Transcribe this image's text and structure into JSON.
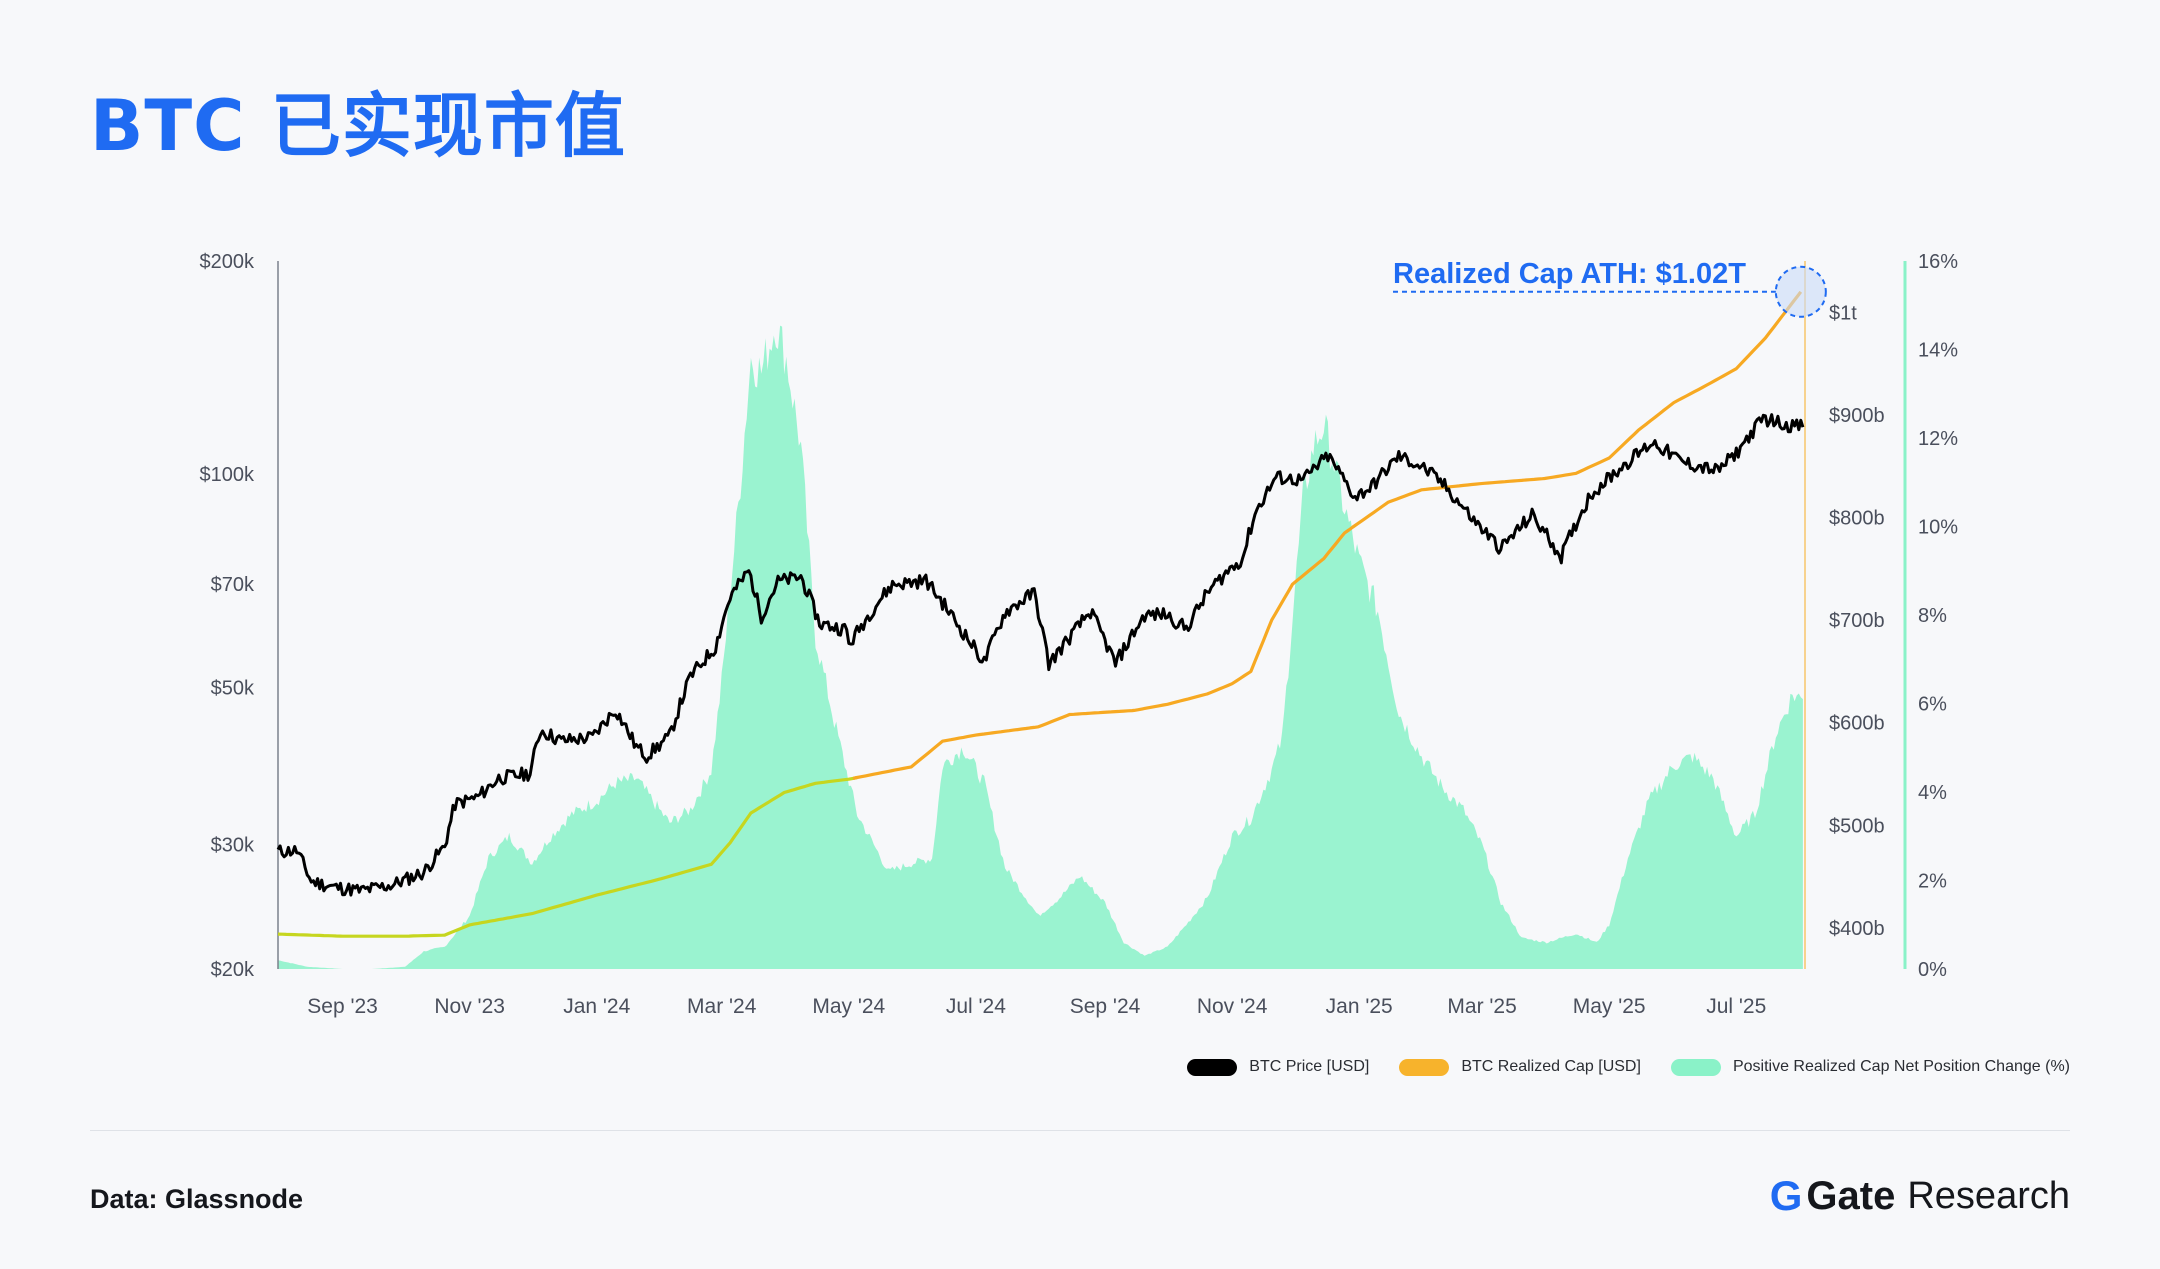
{
  "title": "BTC 已实现市值",
  "source": "Data: Glassnode",
  "brand": {
    "name": "Gate",
    "suffix": "Research"
  },
  "colors": {
    "price": "#000000",
    "realized_cap": "#f7a922",
    "realized_cap_early": "#c6d61f",
    "net_position": "#8af2c8",
    "accent": "#1f6bf2"
  },
  "legend": [
    {
      "label": "BTC Price [USD]",
      "color": "#000000"
    },
    {
      "label": "BTC Realized Cap [USD]",
      "color": "#f7b32c"
    },
    {
      "label": "Positive Realized Cap Net Position Change (%)",
      "color": "#8af2c8"
    }
  ],
  "chart_data": {
    "type": "line",
    "title": "BTC 已实现市值",
    "x_range": [
      "2023-08-01",
      "2025-08-03"
    ],
    "x_ticks": [
      {
        "date": "2023-09-01",
        "label": "Sep '23"
      },
      {
        "date": "2023-11-01",
        "label": "Nov '23"
      },
      {
        "date": "2024-01-01",
        "label": "Jan '24"
      },
      {
        "date": "2024-03-01",
        "label": "Mar '24"
      },
      {
        "date": "2024-05-01",
        "label": "May '24"
      },
      {
        "date": "2024-07-01",
        "label": "Jul '24"
      },
      {
        "date": "2024-09-01",
        "label": "Sep '24"
      },
      {
        "date": "2024-11-01",
        "label": "Nov '24"
      },
      {
        "date": "2025-01-01",
        "label": "Jan '25"
      },
      {
        "date": "2025-03-01",
        "label": "Mar '25"
      },
      {
        "date": "2025-05-01",
        "label": "May '25"
      },
      {
        "date": "2025-07-01",
        "label": "Jul '25"
      }
    ],
    "y_left": {
      "scale": "log",
      "unit": "USD",
      "range": [
        20000,
        200000
      ],
      "ticks": [
        {
          "value": 20000,
          "label": "$20k"
        },
        {
          "value": 30000,
          "label": "$30k"
        },
        {
          "value": 50000,
          "label": "$50k"
        },
        {
          "value": 70000,
          "label": "$70k"
        },
        {
          "value": 100000,
          "label": "$100k"
        },
        {
          "value": 200000,
          "label": "$200k"
        }
      ]
    },
    "y_right_cap": {
      "unit": "USD billions",
      "range": [
        360,
        1050
      ],
      "ticks": [
        {
          "value": 400,
          "label": "$400b"
        },
        {
          "value": 500,
          "label": "$500b"
        },
        {
          "value": 600,
          "label": "$600b"
        },
        {
          "value": 700,
          "label": "$700b"
        },
        {
          "value": 800,
          "label": "$800b"
        },
        {
          "value": 900,
          "label": "$900b"
        },
        {
          "value": 1000,
          "label": "$1t"
        }
      ]
    },
    "y_right_pct": {
      "unit": "%",
      "range": [
        0,
        16
      ],
      "ticks": [
        {
          "value": 0,
          "label": "0%"
        },
        {
          "value": 2,
          "label": "2%"
        },
        {
          "value": 4,
          "label": "4%"
        },
        {
          "value": 6,
          "label": "6%"
        },
        {
          "value": 8,
          "label": "8%"
        },
        {
          "value": 10,
          "label": "10%"
        },
        {
          "value": 12,
          "label": "12%"
        },
        {
          "value": 14,
          "label": "14%"
        },
        {
          "value": 16,
          "label": "16%"
        }
      ]
    },
    "series": [
      {
        "name": "BTC Price [USD]",
        "axis": "left",
        "style": "line",
        "points": [
          [
            "2023-08-01",
            29300
          ],
          [
            "2023-08-10",
            29400
          ],
          [
            "2023-08-17",
            26600
          ],
          [
            "2023-08-28",
            26100
          ],
          [
            "2023-09-10",
            25800
          ],
          [
            "2023-09-25",
            26300
          ],
          [
            "2023-10-10",
            27400
          ],
          [
            "2023-10-20",
            29800
          ],
          [
            "2023-10-25",
            34200
          ],
          [
            "2023-11-05",
            35000
          ],
          [
            "2023-11-15",
            37200
          ],
          [
            "2023-11-30",
            37800
          ],
          [
            "2023-12-05",
            43500
          ],
          [
            "2023-12-15",
            42000
          ],
          [
            "2023-12-30",
            42500
          ],
          [
            "2024-01-10",
            46500
          ],
          [
            "2024-01-20",
            41200
          ],
          [
            "2024-01-25",
            40000
          ],
          [
            "2024-02-05",
            42600
          ],
          [
            "2024-02-15",
            51800
          ],
          [
            "2024-02-27",
            57000
          ],
          [
            "2024-03-05",
            67000
          ],
          [
            "2024-03-14",
            73000
          ],
          [
            "2024-03-20",
            63000
          ],
          [
            "2024-03-28",
            70500
          ],
          [
            "2024-04-08",
            71600
          ],
          [
            "2024-04-17",
            61500
          ],
          [
            "2024-04-30",
            60300
          ],
          [
            "2024-05-01",
            57300
          ],
          [
            "2024-05-15",
            66000
          ],
          [
            "2024-05-22",
            69800
          ],
          [
            "2024-06-07",
            70800
          ],
          [
            "2024-06-24",
            60300
          ],
          [
            "2024-07-05",
            54200
          ],
          [
            "2024-07-15",
            63800
          ],
          [
            "2024-07-29",
            68000
          ],
          [
            "2024-08-05",
            53900
          ],
          [
            "2024-08-15",
            58800
          ],
          [
            "2024-08-25",
            64000
          ],
          [
            "2024-09-06",
            53900
          ],
          [
            "2024-09-20",
            63200
          ],
          [
            "2024-09-30",
            63400
          ],
          [
            "2024-10-10",
            60500
          ],
          [
            "2024-10-21",
            68500
          ],
          [
            "2024-10-29",
            72500
          ],
          [
            "2024-11-06",
            76000
          ],
          [
            "2024-11-12",
            88000
          ],
          [
            "2024-11-22",
            99000
          ],
          [
            "2024-12-05",
            98000
          ],
          [
            "2024-12-17",
            106100
          ],
          [
            "2024-12-30",
            92800
          ],
          [
            "2025-01-07",
            96000
          ],
          [
            "2025-01-20",
            106000
          ],
          [
            "2025-01-31",
            102500
          ],
          [
            "2025-02-10",
            97000
          ],
          [
            "2025-02-25",
            86000
          ],
          [
            "2025-03-10",
            78500
          ],
          [
            "2025-03-25",
            87500
          ],
          [
            "2025-04-08",
            76500
          ],
          [
            "2025-04-22",
            93500
          ],
          [
            "2025-05-08",
            103000
          ],
          [
            "2025-05-22",
            111000
          ],
          [
            "2025-06-05",
            104000
          ],
          [
            "2025-06-22",
            101000
          ],
          [
            "2025-07-01",
            107000
          ],
          [
            "2025-07-14",
            120000
          ],
          [
            "2025-07-25",
            117500
          ],
          [
            "2025-08-02",
            116500
          ]
        ]
      },
      {
        "name": "BTC Realized Cap [USD]",
        "axis": "right_cap",
        "style": "line",
        "points": [
          [
            "2023-08-01",
            394
          ],
          [
            "2023-09-01",
            392
          ],
          [
            "2023-10-01",
            392
          ],
          [
            "2023-10-20",
            393
          ],
          [
            "2023-11-01",
            403
          ],
          [
            "2023-12-01",
            414
          ],
          [
            "2024-01-01",
            432
          ],
          [
            "2024-02-01",
            448
          ],
          [
            "2024-02-25",
            462
          ],
          [
            "2024-03-05",
            483
          ],
          [
            "2024-03-15",
            512
          ],
          [
            "2024-03-31",
            532
          ],
          [
            "2024-04-15",
            541
          ],
          [
            "2024-05-01",
            545
          ],
          [
            "2024-05-31",
            557
          ],
          [
            "2024-06-15",
            582
          ],
          [
            "2024-07-01",
            588
          ],
          [
            "2024-07-31",
            596
          ],
          [
            "2024-08-15",
            608
          ],
          [
            "2024-09-15",
            612
          ],
          [
            "2024-10-01",
            618
          ],
          [
            "2024-10-20",
            628
          ],
          [
            "2024-11-01",
            638
          ],
          [
            "2024-11-10",
            650
          ],
          [
            "2024-11-20",
            700
          ],
          [
            "2024-11-30",
            735
          ],
          [
            "2024-12-15",
            760
          ],
          [
            "2024-12-25",
            785
          ],
          [
            "2025-01-15",
            815
          ],
          [
            "2025-01-31",
            827
          ],
          [
            "2025-02-28",
            833
          ],
          [
            "2025-03-31",
            838
          ],
          [
            "2025-04-15",
            843
          ],
          [
            "2025-05-01",
            858
          ],
          [
            "2025-05-15",
            885
          ],
          [
            "2025-06-01",
            912
          ],
          [
            "2025-06-15",
            927
          ],
          [
            "2025-07-01",
            945
          ],
          [
            "2025-07-15",
            975
          ],
          [
            "2025-08-01",
            1020
          ]
        ]
      },
      {
        "name": "Positive Realized Cap Net Position Change (%)",
        "axis": "right_pct",
        "style": "area",
        "points": [
          [
            "2023-08-01",
            0.2
          ],
          [
            "2023-08-15",
            0.05
          ],
          [
            "2023-09-01",
            0
          ],
          [
            "2023-09-15",
            0
          ],
          [
            "2023-10-01",
            0.05
          ],
          [
            "2023-10-10",
            0.4
          ],
          [
            "2023-10-20",
            0.5
          ],
          [
            "2023-11-01",
            1.2
          ],
          [
            "2023-11-10",
            2.5
          ],
          [
            "2023-11-20",
            3.0
          ],
          [
            "2023-12-01",
            2.4
          ],
          [
            "2023-12-10",
            3.0
          ],
          [
            "2023-12-20",
            3.5
          ],
          [
            "2024-01-01",
            3.8
          ],
          [
            "2024-01-10",
            4.2
          ],
          [
            "2024-01-20",
            4.3
          ],
          [
            "2024-01-31",
            3.6
          ],
          [
            "2024-02-05",
            3.3
          ],
          [
            "2024-02-15",
            3.6
          ],
          [
            "2024-02-25",
            4.5
          ],
          [
            "2024-03-01",
            6.5
          ],
          [
            "2024-03-10",
            11.0
          ],
          [
            "2024-03-15",
            13.8
          ],
          [
            "2024-03-20",
            13.5
          ],
          [
            "2024-03-27",
            14.6
          ],
          [
            "2024-04-01",
            13.8
          ],
          [
            "2024-04-08",
            11.8
          ],
          [
            "2024-04-15",
            7.5
          ],
          [
            "2024-04-24",
            5.6
          ],
          [
            "2024-05-05",
            3.5
          ],
          [
            "2024-05-20",
            2.2
          ],
          [
            "2024-06-01",
            2.4
          ],
          [
            "2024-06-10",
            2.5
          ],
          [
            "2024-06-15",
            4.6
          ],
          [
            "2024-06-25",
            5.0
          ],
          [
            "2024-07-05",
            4.2
          ],
          [
            "2024-07-15",
            2.3
          ],
          [
            "2024-07-31",
            1.2
          ],
          [
            "2024-08-10",
            1.6
          ],
          [
            "2024-08-20",
            2.1
          ],
          [
            "2024-09-01",
            1.5
          ],
          [
            "2024-09-10",
            0.6
          ],
          [
            "2024-09-20",
            0.3
          ],
          [
            "2024-10-01",
            0.5
          ],
          [
            "2024-10-10",
            1.0
          ],
          [
            "2024-10-20",
            1.6
          ],
          [
            "2024-11-01",
            3.0
          ],
          [
            "2024-11-10",
            3.4
          ],
          [
            "2024-11-20",
            4.5
          ],
          [
            "2024-11-25",
            5.2
          ],
          [
            "2024-12-01",
            8.5
          ],
          [
            "2024-12-05",
            10.6
          ],
          [
            "2024-12-10",
            11.8
          ],
          [
            "2024-12-15",
            12.3
          ],
          [
            "2024-12-20",
            11.4
          ],
          [
            "2024-12-25",
            10.4
          ],
          [
            "2025-01-01",
            9.2
          ],
          [
            "2025-01-10",
            8.1
          ],
          [
            "2025-01-20",
            5.8
          ],
          [
            "2025-01-31",
            4.8
          ],
          [
            "2025-02-10",
            4.1
          ],
          [
            "2025-02-20",
            3.6
          ],
          [
            "2025-03-01",
            2.8
          ],
          [
            "2025-03-10",
            1.5
          ],
          [
            "2025-03-20",
            0.7
          ],
          [
            "2025-04-01",
            0.6
          ],
          [
            "2025-04-15",
            0.8
          ],
          [
            "2025-04-25",
            0.6
          ],
          [
            "2025-05-01",
            1.0
          ],
          [
            "2025-05-10",
            2.5
          ],
          [
            "2025-05-20",
            3.8
          ],
          [
            "2025-06-01",
            4.6
          ],
          [
            "2025-06-10",
            4.8
          ],
          [
            "2025-06-20",
            4.3
          ],
          [
            "2025-07-01",
            3.0
          ],
          [
            "2025-07-10",
            3.5
          ],
          [
            "2025-07-20",
            5.3
          ],
          [
            "2025-07-28",
            6.2
          ],
          [
            "2025-08-02",
            6.1
          ]
        ]
      }
    ],
    "annotations": [
      {
        "text": "Realized Cap ATH: $1.02T",
        "date": "2025-08-01",
        "value": 1020
      }
    ],
    "grid": false,
    "legend_position": "bottom-right"
  }
}
